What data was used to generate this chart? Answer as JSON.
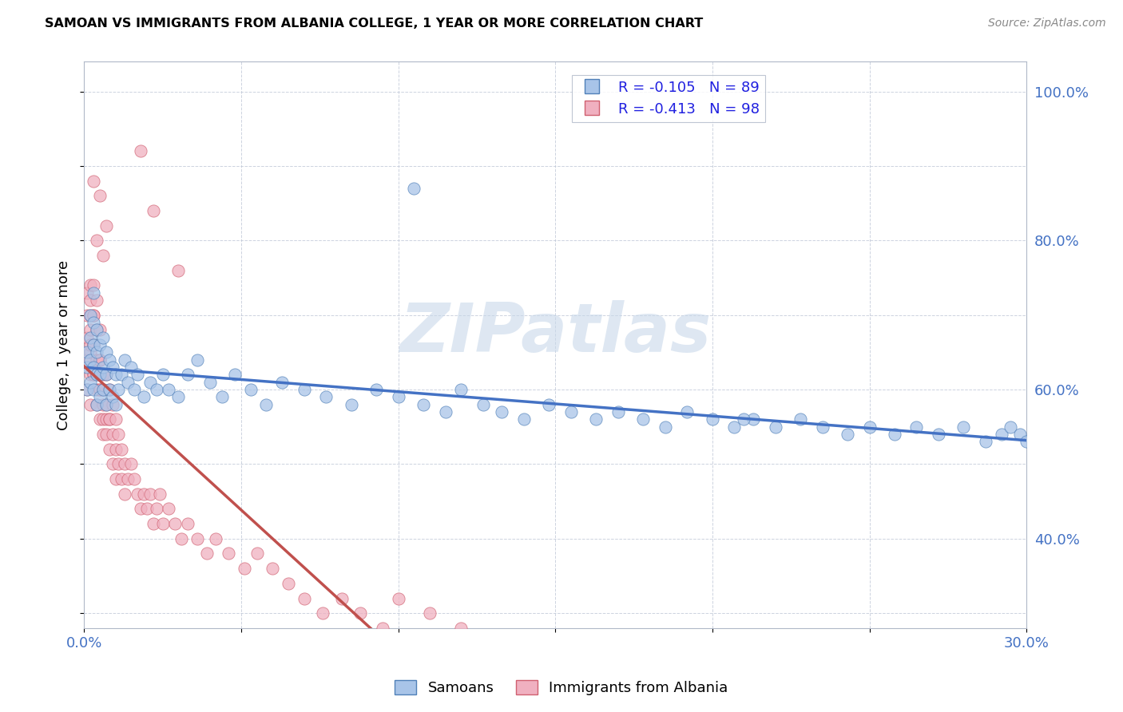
{
  "title": "SAMOAN VS IMMIGRANTS FROM ALBANIA COLLEGE, 1 YEAR OR MORE CORRELATION CHART",
  "source": "Source: ZipAtlas.com",
  "ylabel": "College, 1 year or more",
  "xlim": [
    0.0,
    0.3
  ],
  "ylim": [
    0.28,
    1.04
  ],
  "xticks": [
    0.0,
    0.05,
    0.1,
    0.15,
    0.2,
    0.25,
    0.3
  ],
  "xticklabels": [
    "0.0%",
    "",
    "",
    "",
    "",
    "",
    "30.0%"
  ],
  "yticks": [
    0.3,
    0.4,
    0.5,
    0.6,
    0.7,
    0.8,
    0.9,
    1.0
  ],
  "yticklabels": [
    "",
    "40.0%",
    "",
    "60.0%",
    "",
    "80.0%",
    "",
    "100.0%"
  ],
  "samoans_color": "#a8c4e8",
  "albania_color": "#f0b0c0",
  "trend_samoan_color": "#4472c4",
  "trend_albania_color": "#c0504d",
  "R_samoan": -0.105,
  "N_samoan": 89,
  "R_albania": -0.413,
  "N_albania": 98,
  "watermark": "ZIPatlas",
  "watermark_color": "#c8d8ea",
  "samoans_x": [
    0.001,
    0.001,
    0.001,
    0.002,
    0.002,
    0.002,
    0.002,
    0.003,
    0.003,
    0.003,
    0.003,
    0.003,
    0.004,
    0.004,
    0.004,
    0.004,
    0.005,
    0.005,
    0.005,
    0.006,
    0.006,
    0.006,
    0.007,
    0.007,
    0.007,
    0.008,
    0.008,
    0.009,
    0.009,
    0.01,
    0.01,
    0.011,
    0.012,
    0.013,
    0.014,
    0.015,
    0.016,
    0.017,
    0.019,
    0.021,
    0.023,
    0.025,
    0.027,
    0.03,
    0.033,
    0.036,
    0.04,
    0.044,
    0.048,
    0.053,
    0.058,
    0.063,
    0.07,
    0.077,
    0.085,
    0.093,
    0.1,
    0.108,
    0.115,
    0.12,
    0.127,
    0.133,
    0.14,
    0.148,
    0.155,
    0.163,
    0.17,
    0.178,
    0.185,
    0.192,
    0.2,
    0.207,
    0.213,
    0.22,
    0.228,
    0.235,
    0.243,
    0.25,
    0.258,
    0.265,
    0.272,
    0.28,
    0.287,
    0.292,
    0.295,
    0.298,
    0.3,
    0.105,
    0.21
  ],
  "samoans_y": [
    0.6,
    0.63,
    0.65,
    0.61,
    0.64,
    0.67,
    0.7,
    0.6,
    0.63,
    0.66,
    0.69,
    0.73,
    0.58,
    0.62,
    0.65,
    0.68,
    0.59,
    0.62,
    0.66,
    0.6,
    0.63,
    0.67,
    0.58,
    0.62,
    0.65,
    0.6,
    0.64,
    0.59,
    0.63,
    0.58,
    0.62,
    0.6,
    0.62,
    0.64,
    0.61,
    0.63,
    0.6,
    0.62,
    0.59,
    0.61,
    0.6,
    0.62,
    0.6,
    0.59,
    0.62,
    0.64,
    0.61,
    0.59,
    0.62,
    0.6,
    0.58,
    0.61,
    0.6,
    0.59,
    0.58,
    0.6,
    0.59,
    0.58,
    0.57,
    0.6,
    0.58,
    0.57,
    0.56,
    0.58,
    0.57,
    0.56,
    0.57,
    0.56,
    0.55,
    0.57,
    0.56,
    0.55,
    0.56,
    0.55,
    0.56,
    0.55,
    0.54,
    0.55,
    0.54,
    0.55,
    0.54,
    0.55,
    0.53,
    0.54,
    0.55,
    0.54,
    0.53,
    0.87,
    0.56
  ],
  "albania_x": [
    0.001,
    0.001,
    0.001,
    0.001,
    0.001,
    0.002,
    0.002,
    0.002,
    0.002,
    0.002,
    0.002,
    0.002,
    0.002,
    0.003,
    0.003,
    0.003,
    0.003,
    0.003,
    0.003,
    0.003,
    0.004,
    0.004,
    0.004,
    0.004,
    0.004,
    0.004,
    0.005,
    0.005,
    0.005,
    0.005,
    0.005,
    0.005,
    0.006,
    0.006,
    0.006,
    0.006,
    0.006,
    0.007,
    0.007,
    0.007,
    0.007,
    0.008,
    0.008,
    0.008,
    0.008,
    0.009,
    0.009,
    0.009,
    0.01,
    0.01,
    0.01,
    0.011,
    0.011,
    0.012,
    0.012,
    0.013,
    0.013,
    0.014,
    0.015,
    0.016,
    0.017,
    0.018,
    0.019,
    0.02,
    0.021,
    0.022,
    0.023,
    0.024,
    0.025,
    0.027,
    0.029,
    0.031,
    0.033,
    0.036,
    0.039,
    0.042,
    0.046,
    0.051,
    0.055,
    0.06,
    0.065,
    0.07,
    0.076,
    0.082,
    0.088,
    0.095,
    0.1,
    0.11,
    0.12,
    0.13,
    0.018,
    0.022,
    0.03,
    0.003,
    0.004,
    0.005,
    0.006,
    0.007
  ],
  "albania_y": [
    0.64,
    0.67,
    0.7,
    0.73,
    0.6,
    0.65,
    0.68,
    0.72,
    0.62,
    0.66,
    0.7,
    0.74,
    0.58,
    0.62,
    0.66,
    0.7,
    0.74,
    0.62,
    0.66,
    0.7,
    0.6,
    0.64,
    0.68,
    0.72,
    0.58,
    0.62,
    0.6,
    0.64,
    0.68,
    0.56,
    0.6,
    0.64,
    0.58,
    0.62,
    0.56,
    0.6,
    0.54,
    0.58,
    0.56,
    0.62,
    0.54,
    0.56,
    0.6,
    0.52,
    0.56,
    0.58,
    0.54,
    0.5,
    0.56,
    0.52,
    0.48,
    0.54,
    0.5,
    0.52,
    0.48,
    0.5,
    0.46,
    0.48,
    0.5,
    0.48,
    0.46,
    0.44,
    0.46,
    0.44,
    0.46,
    0.42,
    0.44,
    0.46,
    0.42,
    0.44,
    0.42,
    0.4,
    0.42,
    0.4,
    0.38,
    0.4,
    0.38,
    0.36,
    0.38,
    0.36,
    0.34,
    0.32,
    0.3,
    0.32,
    0.3,
    0.28,
    0.32,
    0.3,
    0.28,
    0.26,
    0.92,
    0.84,
    0.76,
    0.88,
    0.8,
    0.86,
    0.78,
    0.82
  ]
}
